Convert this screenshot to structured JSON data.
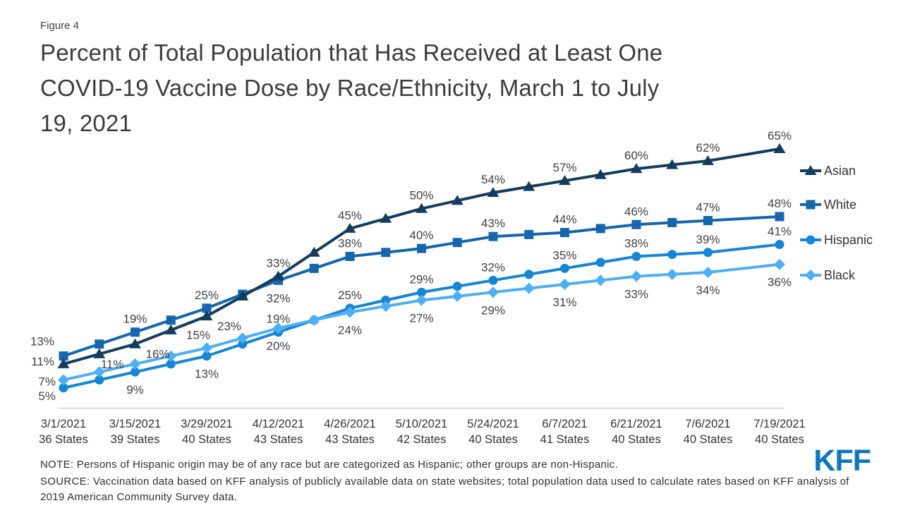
{
  "header": {
    "figure_label": "Figure 4",
    "title": "Percent of Total Population that Has Received at Least One COVID-19 Vaccine Dose by Race/Ethnicity, March 1 to July 19, 2021",
    "title_lines": [
      "Percent of Total Population that Has Received at Least One",
      "COVID-19 Vaccine Dose by Race/Ethnicity, March 1 to July",
      "19, 2021"
    ]
  },
  "footer": {
    "note": "NOTE: Persons of Hispanic origin may be of any race but are categorized as Hispanic; other groups are non-Hispanic.",
    "source": "SOURCE: Vaccination data based on KFF analysis of publicly available data on state websites; total population data used to calculate rates based on KFF analysis of 2019 American Community Survey data.",
    "logo_text": "KFF",
    "logo_color": "#0d76bb"
  },
  "chart_data": {
    "type": "line",
    "title": "Percent of Total Population that Has Received at Least One COVID-19 Vaccine Dose by Race/Ethnicity, March 1 to July 19, 2021",
    "y_unit": "%",
    "ylim": [
      0,
      68
    ],
    "grid": false,
    "legend_position": "right",
    "axis_color": "#cccccc",
    "label_color": "#404040",
    "tick_label_color": "#333333",
    "x_categories": [
      {
        "date": "3/1/2021",
        "states": "36 States"
      },
      {
        "date": "3/15/2021",
        "states": "39 States"
      },
      {
        "date": "3/29/2021",
        "states": "40 States"
      },
      {
        "date": "4/12/2021",
        "states": "43 States"
      },
      {
        "date": "4/26/2021",
        "states": "43 States"
      },
      {
        "date": "5/10/2021",
        "states": "42 States"
      },
      {
        "date": "5/24/2021",
        "states": "40 States"
      },
      {
        "date": "6/7/2021",
        "states": "41 States"
      },
      {
        "date": "6/21/2021",
        "states": "40 States"
      },
      {
        "date": "7/6/2021",
        "states": "40 States"
      },
      {
        "date": "7/19/2021",
        "states": "40 States"
      }
    ],
    "series": [
      {
        "name": "Asian",
        "marker": "triangle",
        "color": "#153c5e",
        "values": [
          11,
          16,
          23,
          33,
          45,
          50,
          54,
          57,
          60,
          62,
          65
        ],
        "label_pos": [
          "leftB",
          "below-right",
          "below-right",
          "above",
          "above",
          "above",
          "above",
          "above",
          "above",
          "above",
          "above"
        ]
      },
      {
        "name": "White",
        "marker": "square",
        "color": "#1566ad",
        "values": [
          13,
          19,
          25,
          32,
          38,
          40,
          43,
          44,
          46,
          47,
          48
        ],
        "label_pos": [
          "leftA",
          "above",
          "above",
          "below",
          "above",
          "above",
          "above",
          "above",
          "above",
          "above",
          "above"
        ]
      },
      {
        "name": "Hispanic",
        "marker": "circle",
        "color": "#1585d6",
        "values": [
          5,
          9,
          13,
          19,
          25,
          29,
          32,
          35,
          38,
          39,
          41
        ],
        "label_pos": [
          "leftD",
          "below",
          "below",
          "above",
          "above",
          "above",
          "above",
          "above",
          "above",
          "above",
          "above"
        ]
      },
      {
        "name": "Black",
        "marker": "diamond",
        "color": "#4faef5",
        "values": [
          7,
          11,
          15,
          20,
          24,
          27,
          29,
          31,
          33,
          34,
          36
        ],
        "label_pos": [
          "leftC",
          "left",
          "above-left",
          "below",
          "below",
          "below",
          "below",
          "below",
          "below",
          "below",
          "below"
        ]
      }
    ]
  }
}
